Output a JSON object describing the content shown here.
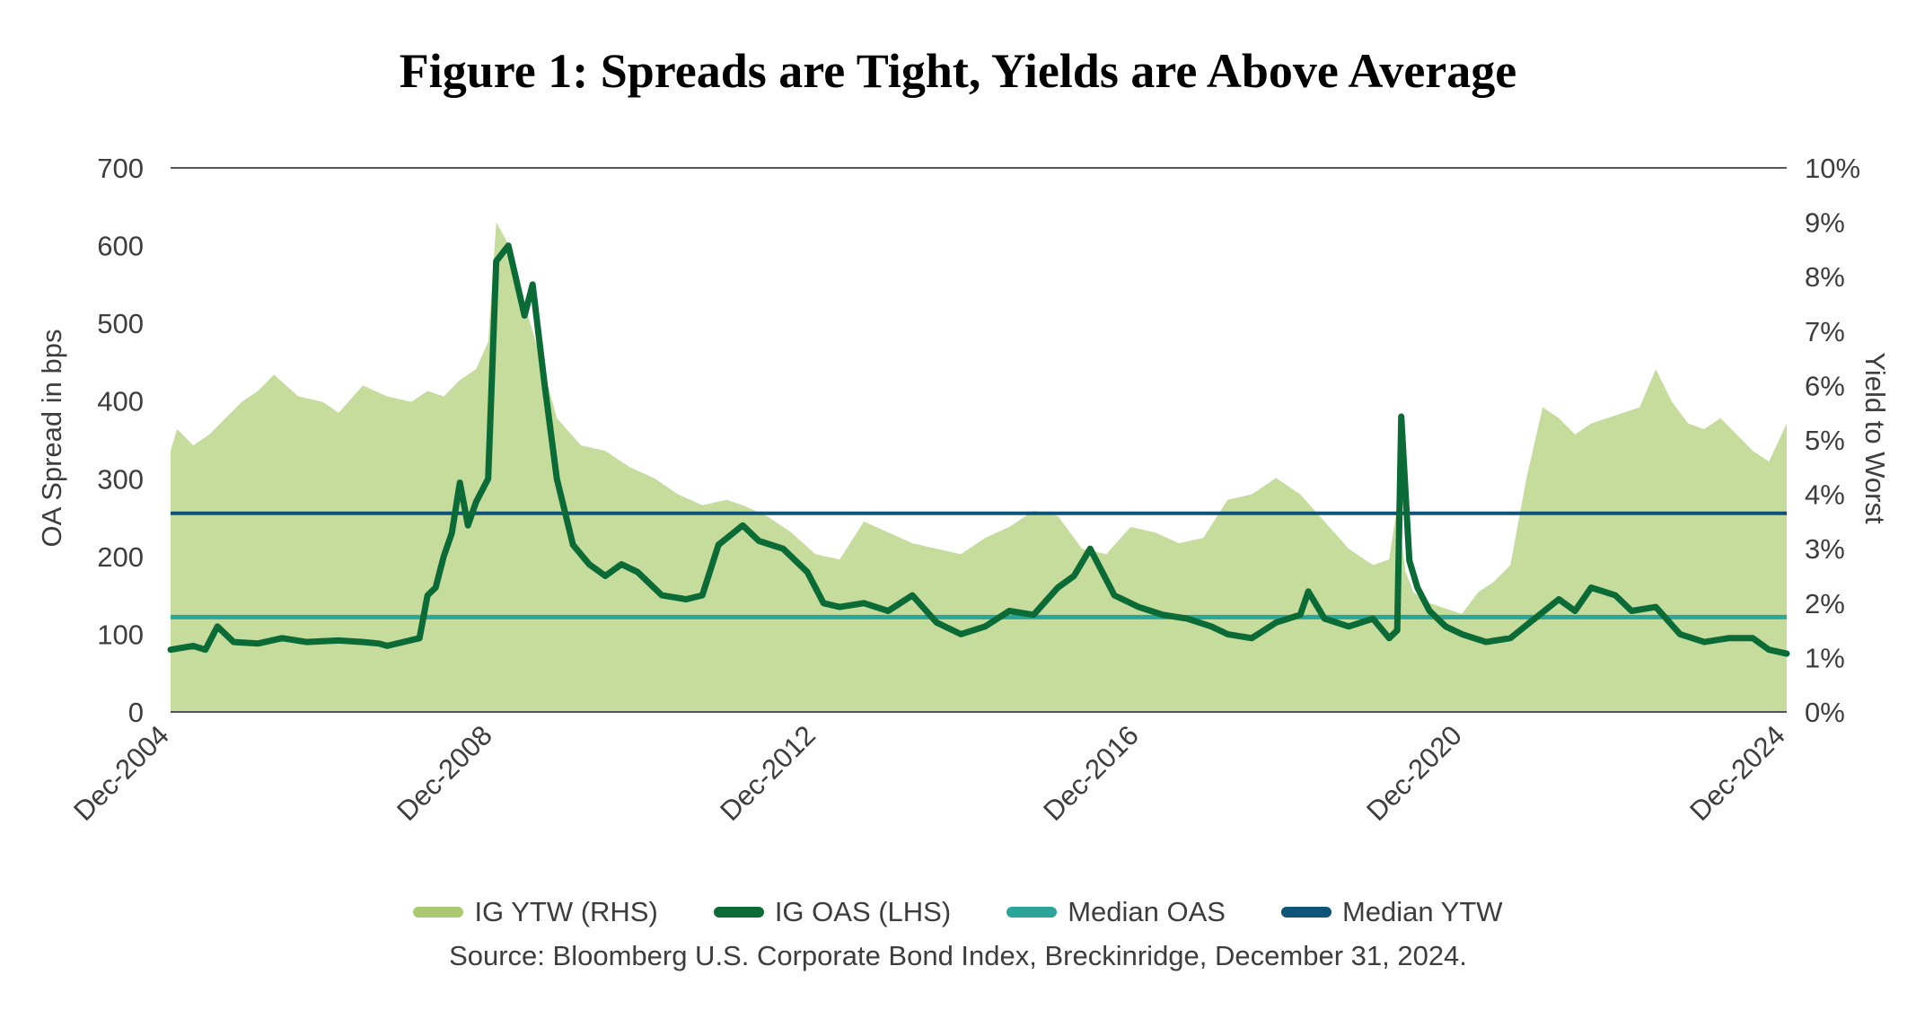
{
  "chart_data": {
    "type": "line",
    "title": "Figure 1: Spreads are Tight, Yields are Above Average",
    "ylabel": "OA Spread in bps",
    "y2label": "Yield to Worst",
    "ylim": [
      0,
      700
    ],
    "y2lim": [
      0,
      10
    ],
    "y_ticks": [
      "0",
      "100",
      "200",
      "300",
      "400",
      "500",
      "600",
      "700"
    ],
    "y2_ticks": [
      "0%",
      "1%",
      "2%",
      "3%",
      "4%",
      "5%",
      "6%",
      "7%",
      "8%",
      "9%",
      "10%"
    ],
    "x_ticks": [
      "Dec-2004",
      "Dec-2008",
      "Dec-2012",
      "Dec-2016",
      "Dec-2020",
      "Dec-2024"
    ],
    "xlim": [
      2004.92,
      2024.92
    ],
    "legend_position": "bottom",
    "colors": {
      "ytw_area": "#c5dc9c",
      "ytw_legend": "#a9c870",
      "oas_line": "#0b6b36",
      "median_oas": "#2ba59a",
      "median_ytw": "#0e5478"
    },
    "series": [
      {
        "name": "IG YTW (RHS)",
        "axis": "right",
        "kind": "area",
        "x": [
          2004.92,
          2005.0,
          2005.2,
          2005.4,
          2005.6,
          2005.8,
          2006.0,
          2006.2,
          2006.5,
          2006.8,
          2007.0,
          2007.3,
          2007.6,
          2007.9,
          2008.1,
          2008.3,
          2008.5,
          2008.7,
          2008.85,
          2008.95,
          2009.1,
          2009.3,
          2009.5,
          2009.7,
          2010.0,
          2010.3,
          2010.6,
          2010.9,
          2011.2,
          2011.5,
          2011.8,
          2012.0,
          2012.3,
          2012.6,
          2012.9,
          2013.2,
          2013.5,
          2013.8,
          2014.1,
          2014.4,
          2014.7,
          2015.0,
          2015.3,
          2015.6,
          2015.9,
          2016.2,
          2016.5,
          2016.8,
          2017.1,
          2017.4,
          2017.7,
          2018.0,
          2018.3,
          2018.6,
          2018.9,
          2019.2,
          2019.5,
          2019.8,
          2020.0,
          2020.1,
          2020.2,
          2020.3,
          2020.5,
          2020.7,
          2020.9,
          2021.1,
          2021.3,
          2021.5,
          2021.7,
          2021.9,
          2022.1,
          2022.3,
          2022.5,
          2022.7,
          2022.9,
          2023.1,
          2023.3,
          2023.5,
          2023.7,
          2023.9,
          2024.1,
          2024.3,
          2024.5,
          2024.7,
          2024.92
        ],
        "values": [
          4.8,
          5.2,
          4.9,
          5.1,
          5.4,
          5.7,
          5.9,
          6.2,
          5.8,
          5.7,
          5.5,
          6.0,
          5.8,
          5.7,
          5.9,
          5.8,
          6.1,
          6.3,
          6.8,
          9.0,
          8.6,
          7.5,
          6.5,
          5.4,
          4.9,
          4.8,
          4.5,
          4.3,
          4.0,
          3.8,
          3.9,
          3.8,
          3.6,
          3.3,
          2.9,
          2.8,
          3.5,
          3.3,
          3.1,
          3.0,
          2.9,
          3.2,
          3.4,
          3.7,
          3.6,
          3.0,
          2.9,
          3.4,
          3.3,
          3.1,
          3.2,
          3.9,
          4.0,
          4.3,
          4.0,
          3.5,
          3.0,
          2.7,
          2.8,
          3.8,
          2.6,
          2.2,
          2.0,
          1.9,
          1.8,
          2.2,
          2.4,
          2.7,
          4.3,
          5.6,
          5.4,
          5.1,
          5.3,
          5.4,
          5.5,
          5.6,
          6.3,
          5.7,
          5.3,
          5.2,
          5.4,
          5.1,
          4.8,
          4.6,
          5.3
        ]
      },
      {
        "name": "IG OAS (LHS)",
        "axis": "left",
        "kind": "line",
        "x": [
          2004.92,
          2005.2,
          2005.35,
          2005.5,
          2005.7,
          2006.0,
          2006.3,
          2006.6,
          2007.0,
          2007.3,
          2007.5,
          2007.6,
          2007.8,
          2008.0,
          2008.1,
          2008.2,
          2008.3,
          2008.4,
          2008.5,
          2008.6,
          2008.7,
          2008.85,
          2008.95,
          2009.1,
          2009.3,
          2009.4,
          2009.55,
          2009.7,
          2009.9,
          2010.1,
          2010.3,
          2010.5,
          2010.7,
          2011.0,
          2011.3,
          2011.5,
          2011.7,
          2012.0,
          2012.2,
          2012.5,
          2012.8,
          2013.0,
          2013.2,
          2013.5,
          2013.8,
          2014.1,
          2014.4,
          2014.7,
          2015.0,
          2015.3,
          2015.6,
          2015.9,
          2016.1,
          2016.3,
          2016.6,
          2016.9,
          2017.2,
          2017.5,
          2017.8,
          2018.0,
          2018.3,
          2018.6,
          2018.9,
          2019.0,
          2019.2,
          2019.5,
          2019.8,
          2020.0,
          2020.1,
          2020.15,
          2020.25,
          2020.35,
          2020.5,
          2020.7,
          2020.9,
          2021.2,
          2021.5,
          2021.8,
          2022.1,
          2022.3,
          2022.5,
          2022.8,
          2023.0,
          2023.3,
          2023.6,
          2023.9,
          2024.2,
          2024.5,
          2024.7,
          2024.92
        ],
        "values": [
          80,
          85,
          80,
          110,
          90,
          88,
          95,
          90,
          92,
          90,
          88,
          85,
          90,
          95,
          150,
          160,
          200,
          230,
          295,
          240,
          270,
          300,
          580,
          600,
          510,
          550,
          420,
          300,
          215,
          190,
          175,
          190,
          180,
          150,
          145,
          150,
          215,
          240,
          220,
          210,
          180,
          140,
          135,
          140,
          130,
          150,
          115,
          100,
          110,
          130,
          125,
          160,
          175,
          210,
          150,
          135,
          125,
          120,
          110,
          100,
          95,
          115,
          125,
          155,
          120,
          110,
          120,
          95,
          105,
          380,
          195,
          160,
          130,
          110,
          100,
          90,
          95,
          120,
          145,
          130,
          160,
          150,
          130,
          135,
          100,
          90,
          95,
          95,
          80,
          75
        ]
      },
      {
        "name": "Median OAS",
        "axis": "left",
        "kind": "hline",
        "value": 122
      },
      {
        "name": "Median YTW",
        "axis": "right",
        "kind": "hline",
        "value": 3.65
      }
    ],
    "source": "Source: Bloomberg U.S. Corporate Bond Index, Breckinridge, December 31, 2024."
  }
}
